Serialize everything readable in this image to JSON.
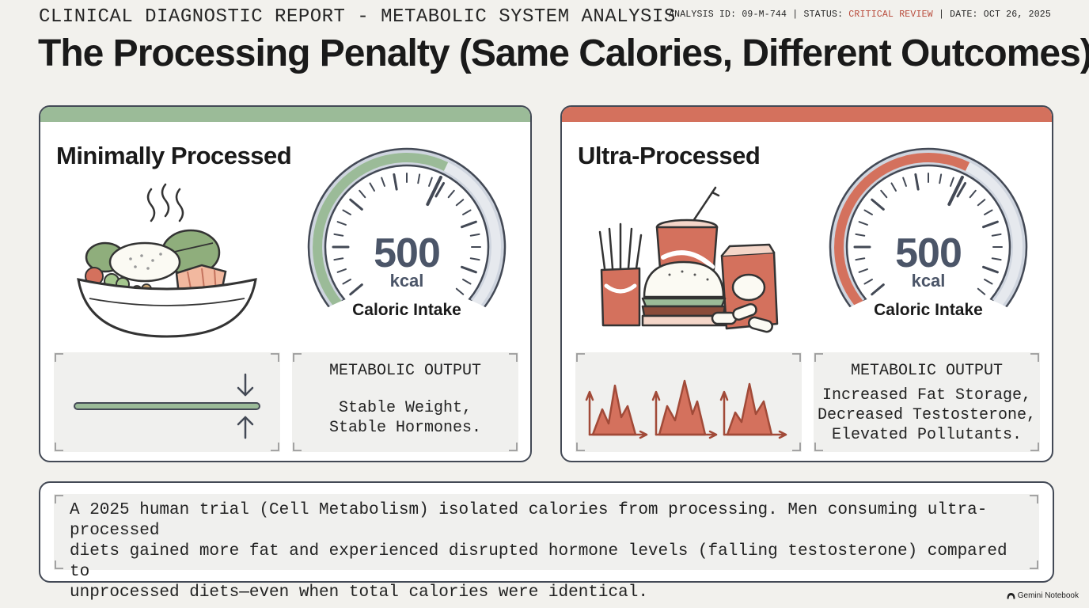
{
  "header": {
    "kicker": "CLINICAL DIAGNOSTIC REPORT - METABOLIC SYSTEM ANALYSIS",
    "analysis_id_label": "ANALYSIS ID:",
    "analysis_id": "09-M-744",
    "status_label": "STATUS:",
    "status": "CRITICAL REVIEW",
    "date_label": "DATE:",
    "date": "OCT 26, 2025",
    "separator": "|",
    "title": "The Processing Penalty (Same Calories, Different Outcomes)"
  },
  "panels": [
    {
      "title": "Minimally Processed",
      "accent": "#9bbb98",
      "illustration": "food-bowl-icon",
      "gauge": {
        "value": "500",
        "unit": "kcal",
        "label": "Caloric Intake",
        "fill_fraction": 0.6
      },
      "output_heading": "METABOLIC OUTPUT",
      "output_lines": [
        "Stable Weight,",
        "Stable Hormones."
      ],
      "trend_icon": "stable-line-icon"
    },
    {
      "title": "Ultra-Processed",
      "accent": "#d4715d",
      "illustration": "fast-food-icon",
      "gauge": {
        "value": "500",
        "unit": "kcal",
        "label": "Caloric Intake",
        "fill_fraction": 0.6
      },
      "output_heading": "METABOLIC OUTPUT",
      "output_lines": [
        "Increased Fat Storage,",
        "Decreased Testosterone,",
        "Elevated Pollutants."
      ],
      "trend_icon": "spike-chart-icon"
    }
  ],
  "summary": {
    "lines": [
      "A 2025 human trial (Cell Metabolism) isolated calories from processing. Men consuming ultra-processed",
      "diets gained more fat and experienced disrupted hormone levels (falling testosterone) compared to",
      "unprocessed diets—even when total calories were identical."
    ]
  },
  "brand": {
    "text": "Gemini Notebook",
    "icon": "notebook-logo-icon"
  },
  "colors": {
    "green": "#9bbb98",
    "red": "#d4715d",
    "ink": "#434955",
    "status": "#b84a3a"
  }
}
